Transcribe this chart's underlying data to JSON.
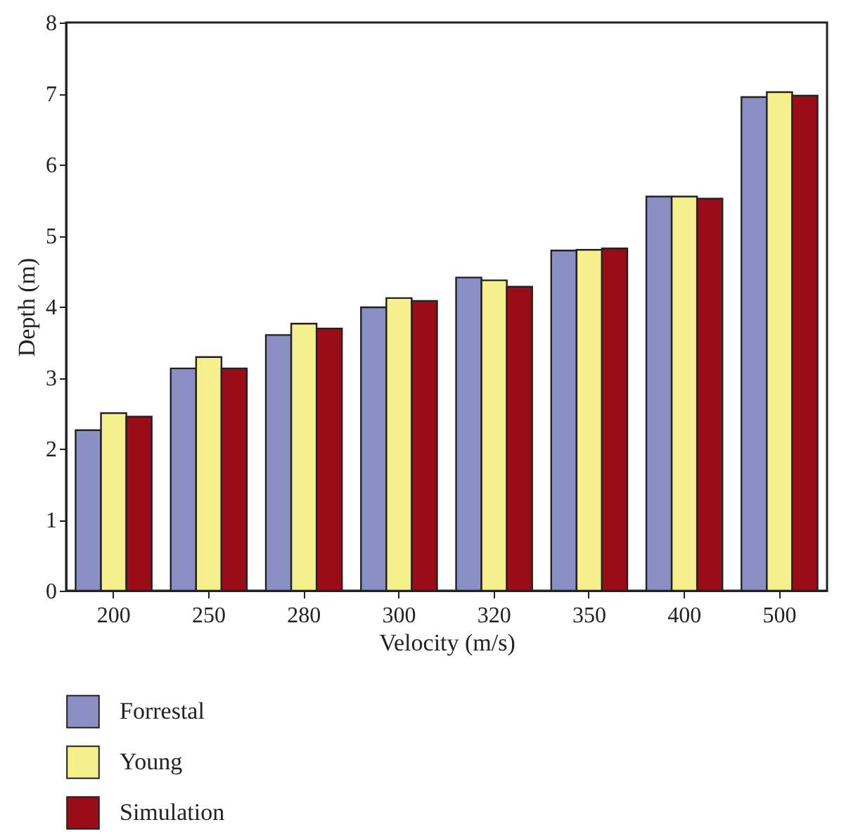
{
  "chart_data": {
    "type": "bar",
    "xlabel": "Velocity (m/s)",
    "ylabel": "Depth (m)",
    "categories": [
      "200",
      "250",
      "280",
      "300",
      "320",
      "350",
      "400",
      "500"
    ],
    "series": [
      {
        "name": "Forrestal",
        "color": "#8a8fc4",
        "values": [
          2.26,
          3.13,
          3.6,
          3.99,
          4.41,
          4.79,
          5.55,
          6.95
        ]
      },
      {
        "name": "Young",
        "color": "#f5f08c",
        "values": [
          2.5,
          3.29,
          3.76,
          4.12,
          4.37,
          4.8,
          5.55,
          7.02
        ]
      },
      {
        "name": "Simulation",
        "color": "#9a0c18",
        "values": [
          2.45,
          3.13,
          3.69,
          4.08,
          4.28,
          4.82,
          5.52,
          6.97
        ]
      }
    ],
    "ylim": [
      0,
      8
    ],
    "yticks": [
      0,
      1,
      2,
      3,
      4,
      5,
      6,
      7,
      8
    ],
    "grid": false,
    "legend": "bottom left"
  }
}
